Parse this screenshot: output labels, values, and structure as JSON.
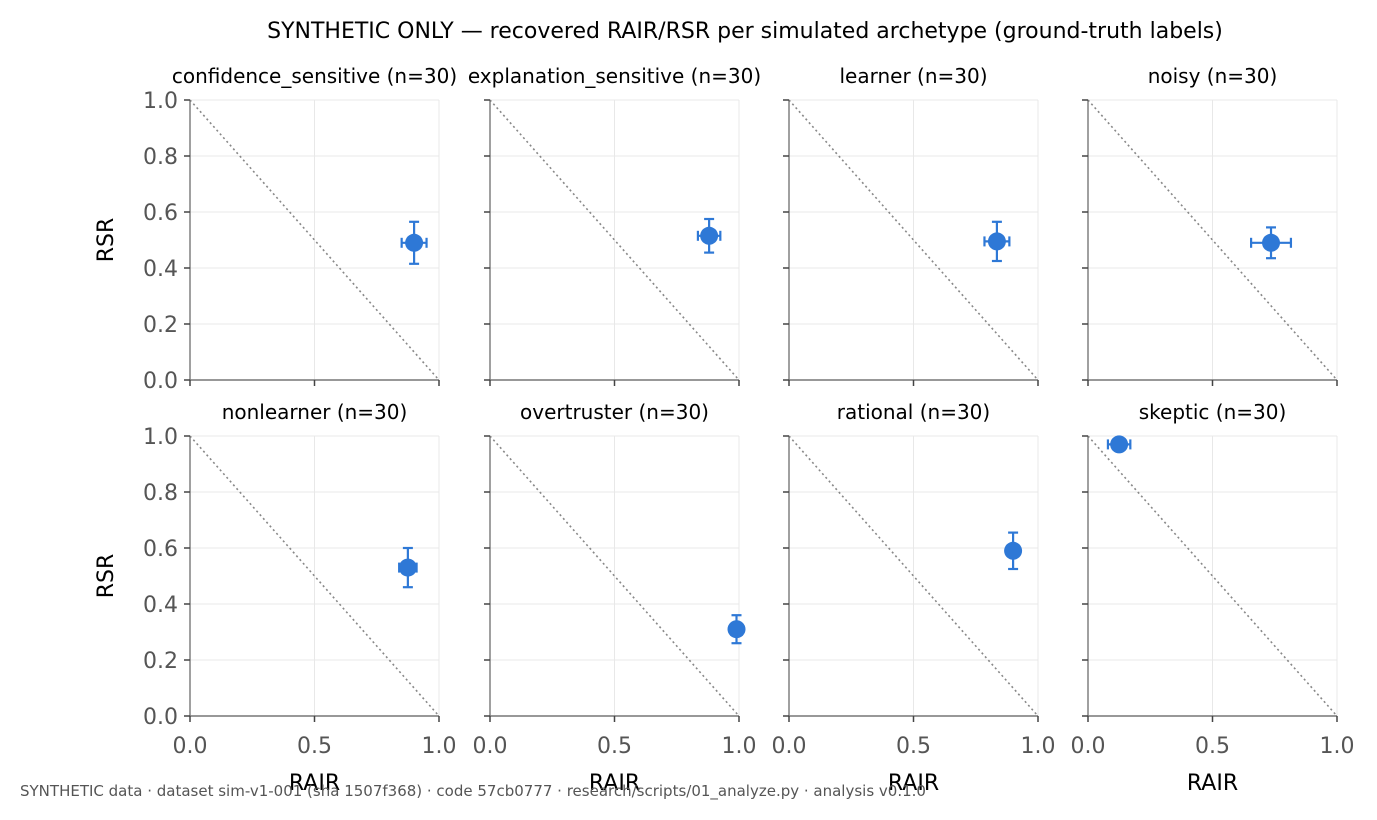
{
  "title": "SYNTHETIC ONLY — recovered RAIR/RSR per simulated archetype (ground-truth labels)",
  "footer": "SYNTHETIC data · dataset sim-v1-001 (sha 1507f368) · code 57cb0777 · research/scripts/01_analyze.py · analysis v0.1.0",
  "colors": {
    "point": "#2e78d6",
    "grid": "#e8e8e8",
    "axis": "#777777",
    "diagonal": "#888888"
  },
  "chart_data": {
    "type": "scatter",
    "xlabel": "RAIR",
    "ylabel": "RSR",
    "xlim": [
      0,
      1
    ],
    "ylim": [
      0,
      1
    ],
    "x_ticks": [
      "0.0",
      "0.5",
      "1.0"
    ],
    "y_ticks": [
      "0.0",
      "0.2",
      "0.4",
      "0.6",
      "0.8",
      "1.0"
    ],
    "grid": true,
    "reference_line": "y = 1 - x (dotted)",
    "panels": [
      {
        "title": "confidence_sensitive (n=30)",
        "x": 0.9,
        "y": 0.49,
        "xerr": 0.05,
        "yerr": 0.075
      },
      {
        "title": "explanation_sensitive (n=30)",
        "x": 0.88,
        "y": 0.515,
        "xerr": 0.045,
        "yerr": 0.06
      },
      {
        "title": "learner (n=30)",
        "x": 0.835,
        "y": 0.495,
        "xerr": 0.05,
        "yerr": 0.07
      },
      {
        "title": "noisy (n=30)",
        "x": 0.735,
        "y": 0.49,
        "xerr": 0.08,
        "yerr": 0.055
      },
      {
        "title": "nonlearner (n=30)",
        "x": 0.875,
        "y": 0.53,
        "xerr": 0.035,
        "yerr": 0.07
      },
      {
        "title": "overtruster (n=30)",
        "x": 0.99,
        "y": 0.31,
        "xerr": 0.01,
        "yerr": 0.05
      },
      {
        "title": "rational (n=30)",
        "x": 0.9,
        "y": 0.59,
        "xerr": 0.02,
        "yerr": 0.065
      },
      {
        "title": "skeptic (n=30)",
        "x": 0.125,
        "y": 0.97,
        "xerr": 0.045,
        "yerr": 0.01
      }
    ]
  }
}
